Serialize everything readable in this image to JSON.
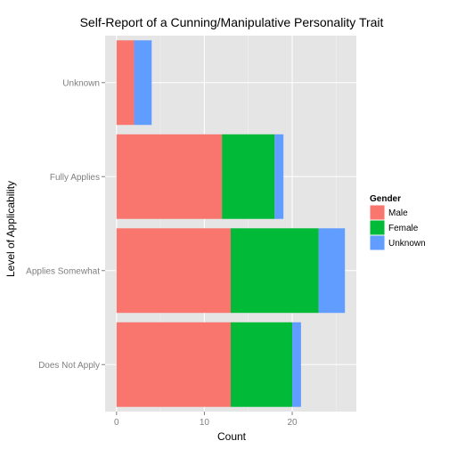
{
  "chart_data": {
    "type": "bar",
    "orientation": "horizontal",
    "stacked": true,
    "title": "Self-Report of a Cunning/Manipulative Personality Trait",
    "xlabel": "Count",
    "ylabel": "Level of Applicability",
    "categories": [
      "Does Not Apply",
      "Applies Somewhat",
      "Fully Applies",
      "Unknown"
    ],
    "series": [
      {
        "name": "Male",
        "color": "#F8766D",
        "values": [
          13,
          13,
          12,
          2
        ]
      },
      {
        "name": "Female",
        "color": "#00BA38",
        "values": [
          7,
          10,
          6,
          0
        ]
      },
      {
        "name": "Unknown",
        "color": "#619CFF",
        "values": [
          1,
          3,
          1,
          2
        ]
      }
    ],
    "xlim": [
      -1.3,
      27.3
    ],
    "xticks": [
      0,
      10,
      20
    ],
    "legend": {
      "title": "Gender",
      "position": "right"
    },
    "grid": true,
    "panel_background": "#E5E5E5"
  }
}
